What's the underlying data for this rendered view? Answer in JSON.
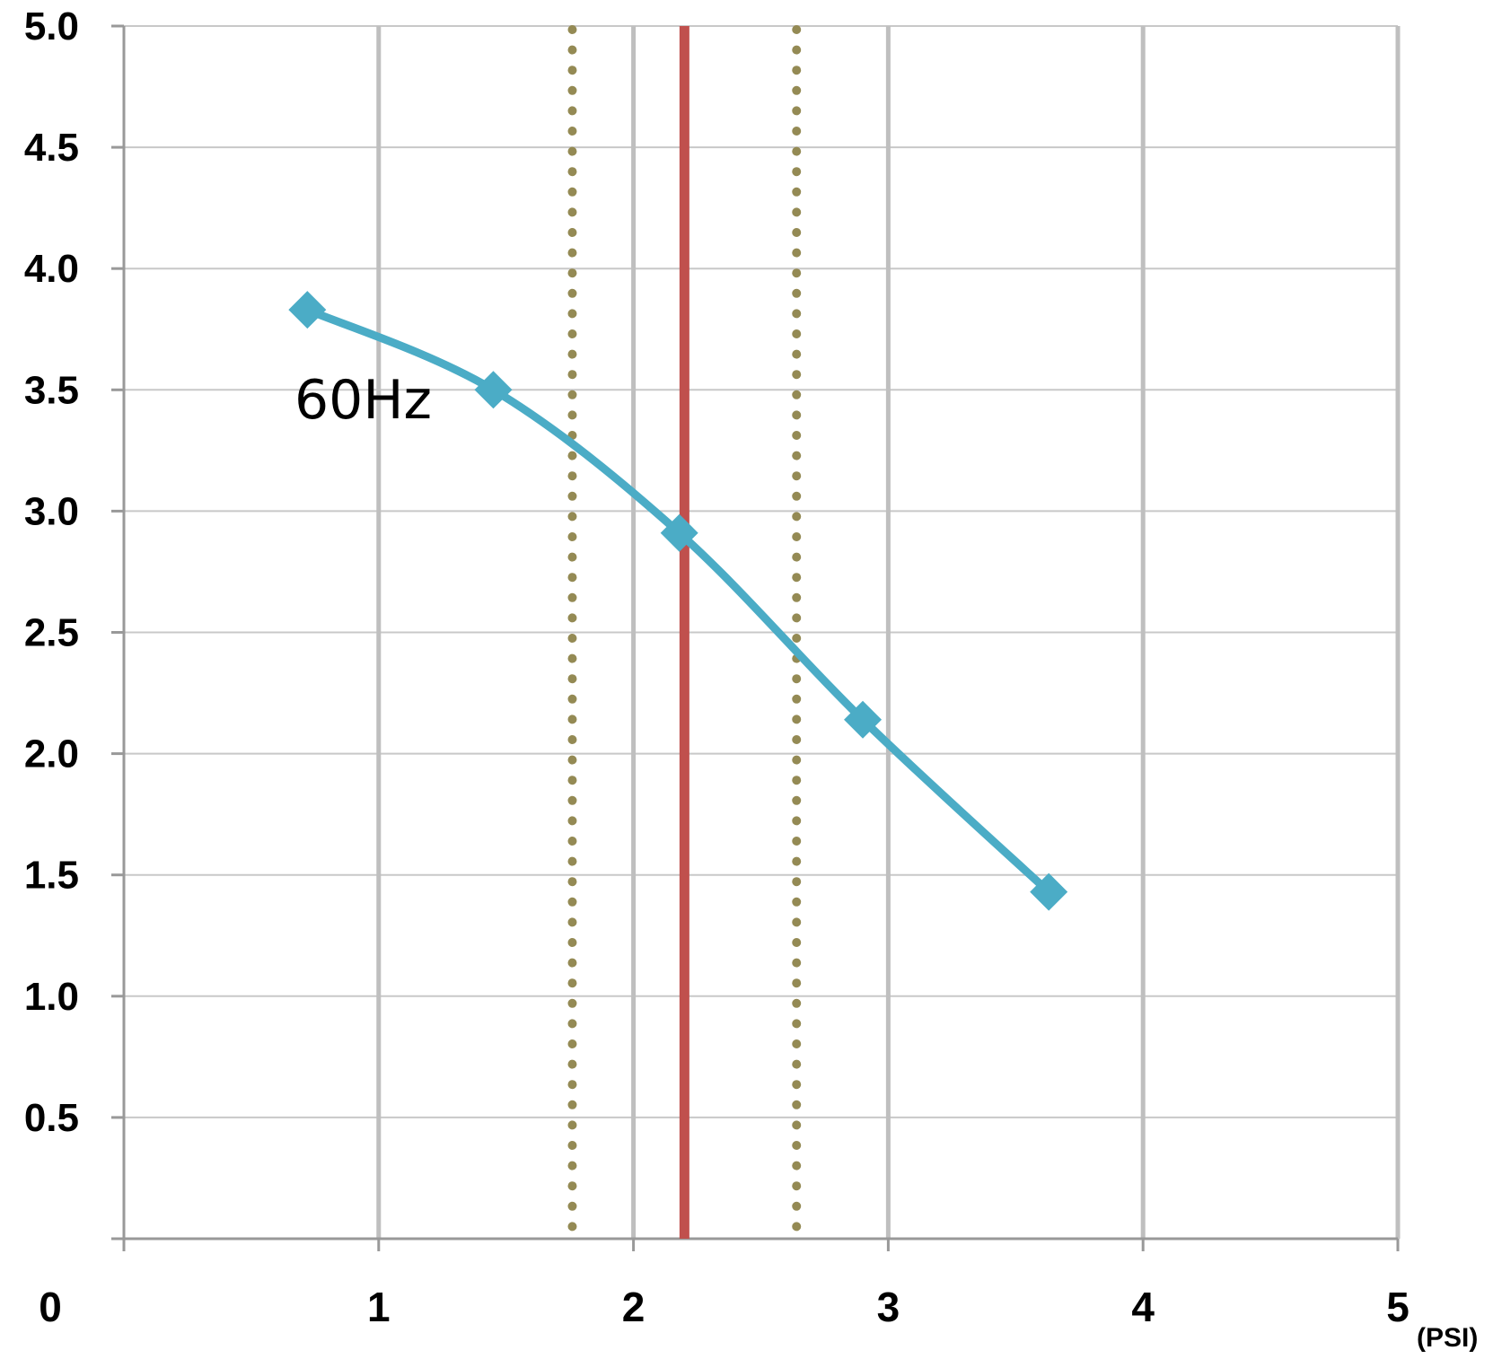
{
  "chart_data": {
    "type": "line",
    "xlim": [
      0,
      5
    ],
    "ylim": [
      0,
      5
    ],
    "x_ticks": [
      {
        "value": 0,
        "label": "0"
      },
      {
        "value": 1,
        "label": "1"
      },
      {
        "value": 2,
        "label": "2"
      },
      {
        "value": 3,
        "label": "3"
      },
      {
        "value": 4,
        "label": "4"
      },
      {
        "value": 5,
        "label": "5"
      }
    ],
    "x_unit": "(PSI)",
    "y_ticks": [
      {
        "value": 0.5,
        "label": "0.5"
      },
      {
        "value": 1.0,
        "label": "1.0"
      },
      {
        "value": 1.5,
        "label": "1.5"
      },
      {
        "value": 2.0,
        "label": "2.0"
      },
      {
        "value": 2.5,
        "label": "2.5"
      },
      {
        "value": 3.0,
        "label": "3.0"
      },
      {
        "value": 3.5,
        "label": "3.5"
      },
      {
        "value": 4.0,
        "label": "4.0"
      },
      {
        "value": 4.5,
        "label": "4.5"
      },
      {
        "value": 5.0,
        "label": "5.0"
      }
    ],
    "grid": true,
    "series": [
      {
        "name": "60Hz",
        "color": "#4bacc6",
        "marker": "diamond",
        "smooth": true,
        "points": [
          {
            "x": 0.72,
            "y": 3.83
          },
          {
            "x": 1.45,
            "y": 3.5
          },
          {
            "x": 2.18,
            "y": 2.91
          },
          {
            "x": 2.9,
            "y": 2.14
          },
          {
            "x": 3.63,
            "y": 1.43
          }
        ]
      }
    ],
    "reference_lines": [
      {
        "x": 1.76,
        "style": "dotted",
        "color": "#948a54"
      },
      {
        "x": 2.2,
        "style": "solid",
        "color": "#c0504d"
      },
      {
        "x": 2.64,
        "style": "dotted",
        "color": "#948a54"
      }
    ]
  }
}
